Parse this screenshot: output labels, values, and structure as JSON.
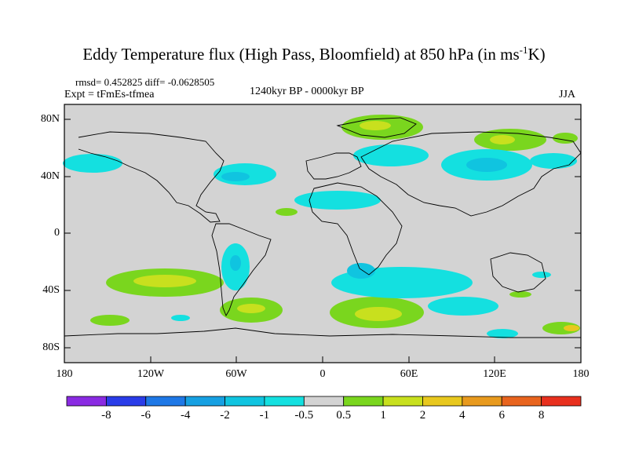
{
  "title": {
    "main": "Eddy Temperature flux (High Pass, Bloomfield) at 850 hPa (in ms",
    "sup": "-1",
    "tail": "K)"
  },
  "stats": "rmsd= 0.452825 diff= -0.0628505",
  "expt": "Expt = tFmEs-tfmea",
  "period": "1240kyr BP - 0000kyr BP",
  "season": "JJA",
  "map": {
    "y_ticks": [
      "80N",
      "40N",
      "0",
      "40S",
      "80S"
    ],
    "x_ticks": [
      "180",
      "120W",
      "60W",
      "0",
      "60E",
      "120E",
      "180"
    ],
    "background_color": "#d3d3d3"
  },
  "colorbar": {
    "labels": [
      "-8",
      "-6",
      "-4",
      "-2",
      "-1",
      "-0.5",
      "0.5",
      "1",
      "2",
      "4",
      "6",
      "8"
    ],
    "colors": [
      "#8a2be2",
      "#2a3ce8",
      "#1e78e6",
      "#16a0e2",
      "#10c4e0",
      "#14e0e0",
      "#d3d3d3",
      "#7ad61e",
      "#c8e01e",
      "#e8c81e",
      "#e89a1e",
      "#e8641e",
      "#e8301e"
    ]
  }
}
